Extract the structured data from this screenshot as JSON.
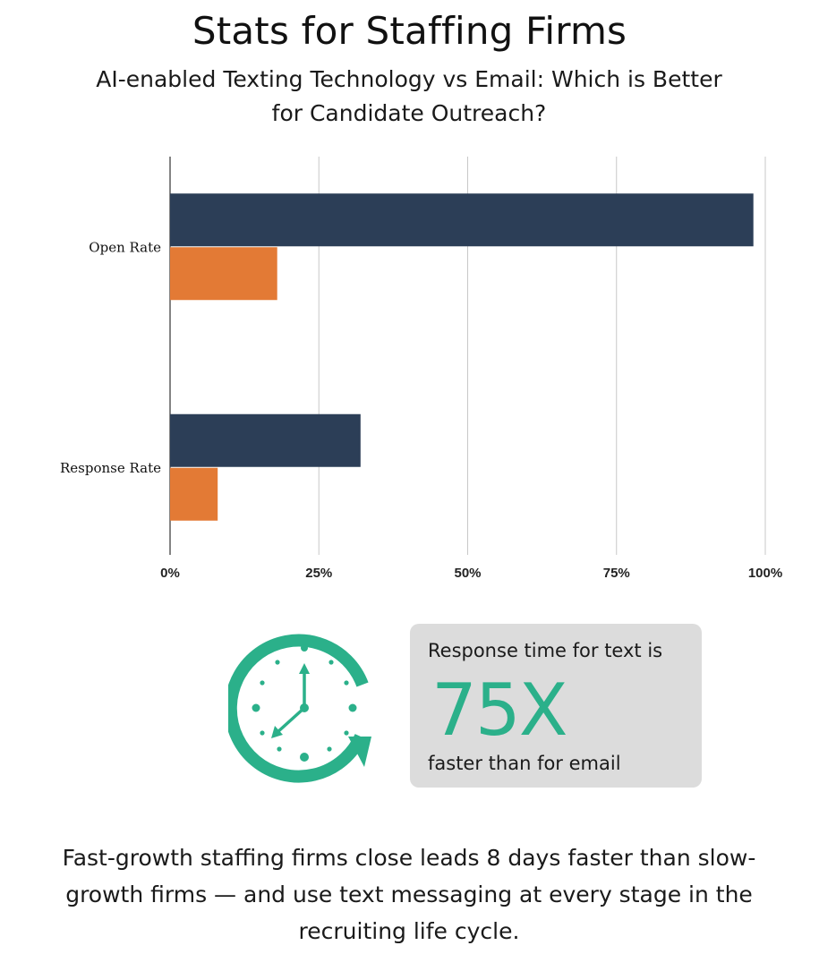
{
  "title": "Stats for Staffing Firms",
  "subtitle": "AI-enabled Texting Technology vs Email: Which is Better for Candidate Outreach?",
  "chart_data": {
    "type": "bar",
    "orientation": "horizontal",
    "categories": [
      "Open Rate",
      "Response Rate"
    ],
    "series": [
      {
        "color": "#2c3e57",
        "values": [
          98,
          32
        ]
      },
      {
        "color": "#e37a35",
        "values": [
          18,
          8
        ]
      }
    ],
    "xlim": [
      0,
      100
    ],
    "xticks": [
      "0%",
      "25%",
      "50%",
      "75%",
      "100%"
    ],
    "grid": true,
    "legend": "none"
  },
  "callout": {
    "pre": "Response time for text is",
    "big": "75X",
    "post": "faster than for email",
    "accent_color": "#2bb08a",
    "icon": "clock-refresh-icon"
  },
  "footer": "Fast-growth staffing firms close leads 8 days faster than slow-growth firms — and use text messaging at every stage in the recruiting life cycle."
}
